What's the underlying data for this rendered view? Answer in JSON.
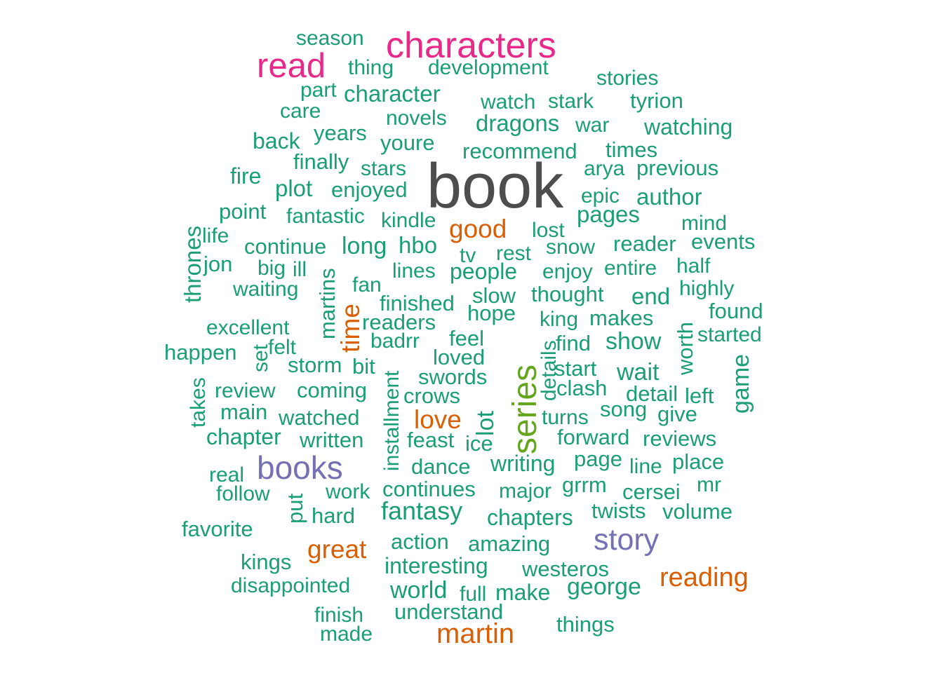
{
  "palette": {
    "tier1": "#4d4d4d",
    "tier2": "#e7298a",
    "tier3": "#66a61e",
    "tier4": "#7570b3",
    "tier5": "#d95f02",
    "tier6": "#1b9e77"
  },
  "words": [
    {
      "text": "book",
      "tier": "tier1"
    },
    {
      "text": "characters",
      "tier": "tier2"
    },
    {
      "text": "read",
      "tier": "tier2"
    },
    {
      "text": "series",
      "tier": "tier3"
    },
    {
      "text": "books",
      "tier": "tier4"
    },
    {
      "text": "story",
      "tier": "tier4"
    },
    {
      "text": "good",
      "tier": "tier5"
    },
    {
      "text": "time",
      "tier": "tier5"
    },
    {
      "text": "love",
      "tier": "tier5"
    },
    {
      "text": "great",
      "tier": "tier5"
    },
    {
      "text": "reading",
      "tier": "tier5"
    },
    {
      "text": "martin",
      "tier": "tier5"
    },
    {
      "text": "season",
      "tier": "tier6"
    },
    {
      "text": "thing",
      "tier": "tier6"
    },
    {
      "text": "development",
      "tier": "tier6"
    },
    {
      "text": "stories",
      "tier": "tier6"
    },
    {
      "text": "part",
      "tier": "tier6"
    },
    {
      "text": "character",
      "tier": "tier6"
    },
    {
      "text": "watch",
      "tier": "tier6"
    },
    {
      "text": "stark",
      "tier": "tier6"
    },
    {
      "text": "tyrion",
      "tier": "tier6"
    },
    {
      "text": "care",
      "tier": "tier6"
    },
    {
      "text": "novels",
      "tier": "tier6"
    },
    {
      "text": "dragons",
      "tier": "tier6"
    },
    {
      "text": "war",
      "tier": "tier6"
    },
    {
      "text": "watching",
      "tier": "tier6"
    },
    {
      "text": "back",
      "tier": "tier6"
    },
    {
      "text": "years",
      "tier": "tier6"
    },
    {
      "text": "youre",
      "tier": "tier6"
    },
    {
      "text": "recommend",
      "tier": "tier6"
    },
    {
      "text": "times",
      "tier": "tier6"
    },
    {
      "text": "finally",
      "tier": "tier6"
    },
    {
      "text": "stars",
      "tier": "tier6"
    },
    {
      "text": "arya",
      "tier": "tier6"
    },
    {
      "text": "previous",
      "tier": "tier6"
    },
    {
      "text": "fire",
      "tier": "tier6"
    },
    {
      "text": "plot",
      "tier": "tier6"
    },
    {
      "text": "enjoyed",
      "tier": "tier6"
    },
    {
      "text": "epic",
      "tier": "tier6"
    },
    {
      "text": "author",
      "tier": "tier6"
    },
    {
      "text": "point",
      "tier": "tier6"
    },
    {
      "text": "fantastic",
      "tier": "tier6"
    },
    {
      "text": "kindle",
      "tier": "tier6"
    },
    {
      "text": "pages",
      "tier": "tier6"
    },
    {
      "text": "mind",
      "tier": "tier6"
    },
    {
      "text": "thrones",
      "tier": "tier6"
    },
    {
      "text": "life",
      "tier": "tier6"
    },
    {
      "text": "lost",
      "tier": "tier6"
    },
    {
      "text": "continue",
      "tier": "tier6"
    },
    {
      "text": "long",
      "tier": "tier6"
    },
    {
      "text": "hbo",
      "tier": "tier6"
    },
    {
      "text": "snow",
      "tier": "tier6"
    },
    {
      "text": "reader",
      "tier": "tier6"
    },
    {
      "text": "events",
      "tier": "tier6"
    },
    {
      "text": "jon",
      "tier": "tier6"
    },
    {
      "text": "big",
      "tier": "tier6"
    },
    {
      "text": "ill",
      "tier": "tier6"
    },
    {
      "text": "martins",
      "tier": "tier6"
    },
    {
      "text": "tv",
      "tier": "tier6"
    },
    {
      "text": "rest",
      "tier": "tier6"
    },
    {
      "text": "lines",
      "tier": "tier6"
    },
    {
      "text": "people",
      "tier": "tier6"
    },
    {
      "text": "enjoy",
      "tier": "tier6"
    },
    {
      "text": "entire",
      "tier": "tier6"
    },
    {
      "text": "half",
      "tier": "tier6"
    },
    {
      "text": "waiting",
      "tier": "tier6"
    },
    {
      "text": "fan",
      "tier": "tier6"
    },
    {
      "text": "slow",
      "tier": "tier6"
    },
    {
      "text": "thought",
      "tier": "tier6"
    },
    {
      "text": "highly",
      "tier": "tier6"
    },
    {
      "text": "end",
      "tier": "tier6"
    },
    {
      "text": "finished",
      "tier": "tier6"
    },
    {
      "text": "hope",
      "tier": "tier6"
    },
    {
      "text": "found",
      "tier": "tier6"
    },
    {
      "text": "excellent",
      "tier": "tier6"
    },
    {
      "text": "readers",
      "tier": "tier6"
    },
    {
      "text": "king",
      "tier": "tier6"
    },
    {
      "text": "makes",
      "tier": "tier6"
    },
    {
      "text": "worth",
      "tier": "tier6"
    },
    {
      "text": "started",
      "tier": "tier6"
    },
    {
      "text": "happen",
      "tier": "tier6"
    },
    {
      "text": "set",
      "tier": "tier6"
    },
    {
      "text": "felt",
      "tier": "tier6"
    },
    {
      "text": "badrr",
      "tier": "tier6"
    },
    {
      "text": "feel",
      "tier": "tier6"
    },
    {
      "text": "find",
      "tier": "tier6"
    },
    {
      "text": "show",
      "tier": "tier6"
    },
    {
      "text": "game",
      "tier": "tier6"
    },
    {
      "text": "storm",
      "tier": "tier6"
    },
    {
      "text": "bit",
      "tier": "tier6"
    },
    {
      "text": "loved",
      "tier": "tier6"
    },
    {
      "text": "details",
      "tier": "tier6"
    },
    {
      "text": "start",
      "tier": "tier6"
    },
    {
      "text": "wait",
      "tier": "tier6"
    },
    {
      "text": "takes",
      "tier": "tier6"
    },
    {
      "text": "review",
      "tier": "tier6"
    },
    {
      "text": "coming",
      "tier": "tier6"
    },
    {
      "text": "installment",
      "tier": "tier6"
    },
    {
      "text": "swords",
      "tier": "tier6"
    },
    {
      "text": "clash",
      "tier": "tier6"
    },
    {
      "text": "detail",
      "tier": "tier6"
    },
    {
      "text": "left",
      "tier": "tier6"
    },
    {
      "text": "main",
      "tier": "tier6"
    },
    {
      "text": "crows",
      "tier": "tier6"
    },
    {
      "text": "song",
      "tier": "tier6"
    },
    {
      "text": "watched",
      "tier": "tier6"
    },
    {
      "text": "lot",
      "tier": "tier6"
    },
    {
      "text": "turns",
      "tier": "tier6"
    },
    {
      "text": "give",
      "tier": "tier6"
    },
    {
      "text": "chapter",
      "tier": "tier6"
    },
    {
      "text": "written",
      "tier": "tier6"
    },
    {
      "text": "feast",
      "tier": "tier6"
    },
    {
      "text": "ice",
      "tier": "tier6"
    },
    {
      "text": "forward",
      "tier": "tier6"
    },
    {
      "text": "reviews",
      "tier": "tier6"
    },
    {
      "text": "page",
      "tier": "tier6"
    },
    {
      "text": "line",
      "tier": "tier6"
    },
    {
      "text": "place",
      "tier": "tier6"
    },
    {
      "text": "real",
      "tier": "tier6"
    },
    {
      "text": "dance",
      "tier": "tier6"
    },
    {
      "text": "writing",
      "tier": "tier6"
    },
    {
      "text": "follow",
      "tier": "tier6"
    },
    {
      "text": "work",
      "tier": "tier6"
    },
    {
      "text": "continues",
      "tier": "tier6"
    },
    {
      "text": "major",
      "tier": "tier6"
    },
    {
      "text": "grrm",
      "tier": "tier6"
    },
    {
      "text": "cersei",
      "tier": "tier6"
    },
    {
      "text": "mr",
      "tier": "tier6"
    },
    {
      "text": "put",
      "tier": "tier6"
    },
    {
      "text": "hard",
      "tier": "tier6"
    },
    {
      "text": "fantasy",
      "tier": "tier6"
    },
    {
      "text": "chapters",
      "tier": "tier6"
    },
    {
      "text": "twists",
      "tier": "tier6"
    },
    {
      "text": "volume",
      "tier": "tier6"
    },
    {
      "text": "favorite",
      "tier": "tier6"
    },
    {
      "text": "action",
      "tier": "tier6"
    },
    {
      "text": "amazing",
      "tier": "tier6"
    },
    {
      "text": "kings",
      "tier": "tier6"
    },
    {
      "text": "interesting",
      "tier": "tier6"
    },
    {
      "text": "westeros",
      "tier": "tier6"
    },
    {
      "text": "disappointed",
      "tier": "tier6"
    },
    {
      "text": "world",
      "tier": "tier6"
    },
    {
      "text": "full",
      "tier": "tier6"
    },
    {
      "text": "make",
      "tier": "tier6"
    },
    {
      "text": "george",
      "tier": "tier6"
    },
    {
      "text": "understand",
      "tier": "tier6"
    },
    {
      "text": "finish",
      "tier": "tier6"
    },
    {
      "text": "made",
      "tier": "tier6"
    },
    {
      "text": "things",
      "tier": "tier6"
    }
  ]
}
